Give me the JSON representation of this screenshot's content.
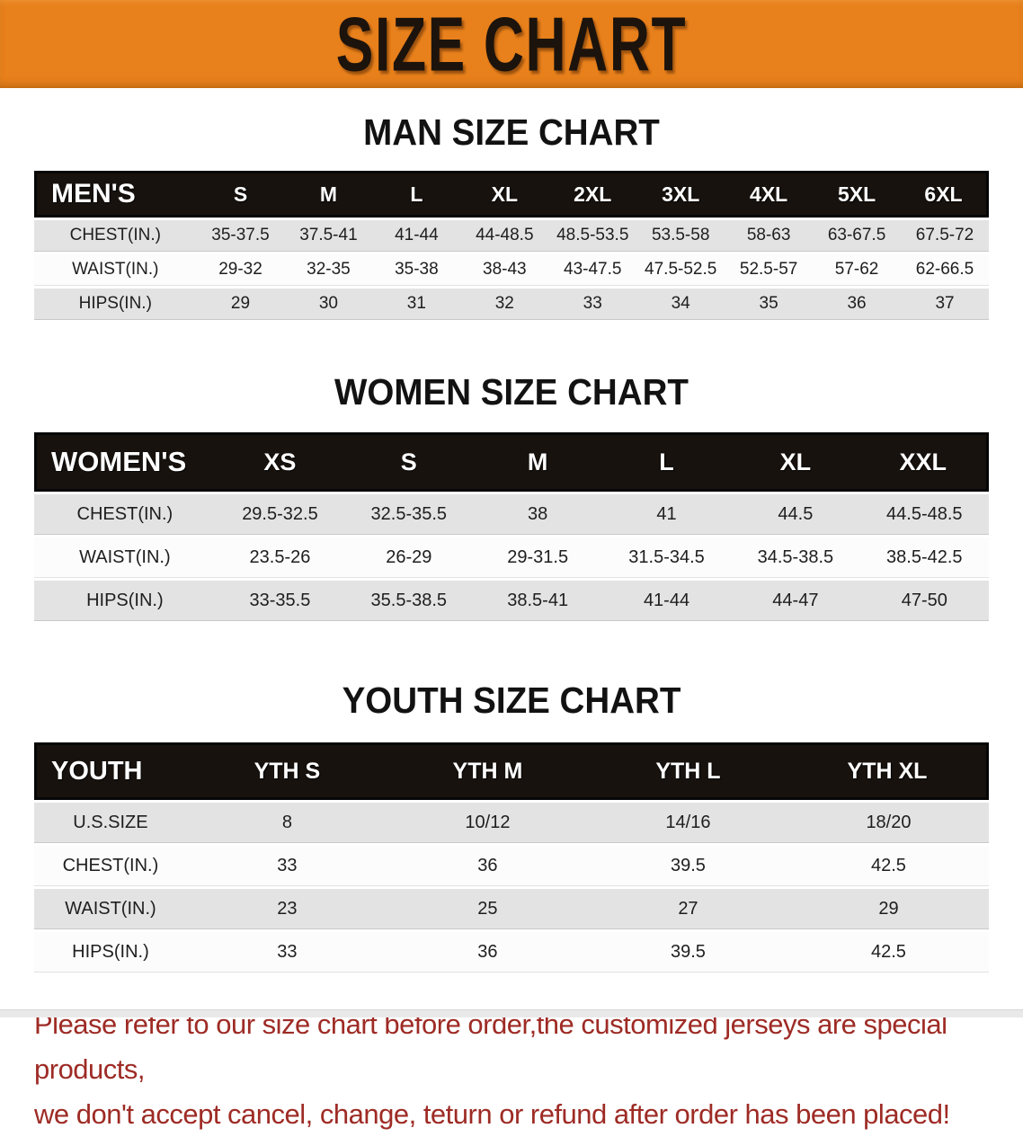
{
  "banner": {
    "title": "SIZE CHART",
    "bg_color": "#E8801B",
    "text_color": "#1C130C"
  },
  "sections": [
    {
      "key": "mens",
      "title": "MAN SIZE CHART",
      "header_label": "MEN'S",
      "columns": [
        "S",
        "M",
        "L",
        "XL",
        "2XL",
        "3XL",
        "4XL",
        "5XL",
        "6XL"
      ],
      "rows": [
        {
          "label": "CHEST(IN.)",
          "values": [
            "35-37.5",
            "37.5-41",
            "41-44",
            "44-48.5",
            "48.5-53.5",
            "53.5-58",
            "58-63",
            "63-67.5",
            "67.5-72"
          ]
        },
        {
          "label": "WAIST(IN.)",
          "values": [
            "29-32",
            "32-35",
            "35-38",
            "38-43",
            "43-47.5",
            "47.5-52.5",
            "52.5-57",
            "57-62",
            "62-66.5"
          ]
        },
        {
          "label": "HIPS(IN.)",
          "values": [
            "29",
            "30",
            "31",
            "32",
            "33",
            "34",
            "35",
            "36",
            "37"
          ]
        }
      ]
    },
    {
      "key": "womens",
      "title": "WOMEN SIZE CHART",
      "header_label": "WOMEN'S",
      "columns": [
        "XS",
        "S",
        "M",
        "L",
        "XL",
        "XXL"
      ],
      "rows": [
        {
          "label": "CHEST(IN.)",
          "values": [
            "29.5-32.5",
            "32.5-35.5",
            "38",
            "41",
            "44.5",
            "44.5-48.5"
          ]
        },
        {
          "label": "WAIST(IN.)",
          "values": [
            "23.5-26",
            "26-29",
            "29-31.5",
            "31.5-34.5",
            "34.5-38.5",
            "38.5-42.5"
          ]
        },
        {
          "label": "HIPS(IN.)",
          "values": [
            "33-35.5",
            "35.5-38.5",
            "38.5-41",
            "41-44",
            "44-47",
            "47-50"
          ]
        }
      ]
    },
    {
      "key": "youth",
      "title": "YOUTH SIZE CHART",
      "header_label": "YOUTH",
      "columns": [
        "YTH S",
        "YTH M",
        "YTH L",
        "YTH XL"
      ],
      "rows": [
        {
          "label": "U.S.SIZE",
          "values": [
            "8",
            "10/12",
            "14/16",
            "18/20"
          ]
        },
        {
          "label": "CHEST(IN.)",
          "values": [
            "33",
            "36",
            "39.5",
            "42.5"
          ]
        },
        {
          "label": "WAIST(IN.)",
          "values": [
            "23",
            "25",
            "27",
            "29"
          ]
        },
        {
          "label": "HIPS(IN.)",
          "values": [
            "33",
            "36",
            "39.5",
            "42.5"
          ]
        }
      ]
    }
  ],
  "disclaimer": {
    "lines": [
      "Please refer to our size chart before order,the customized jerseys are special products,",
      "we don't accept cancel, change, teturn or refund after order has been placed!"
    ],
    "color": "#9E2B25"
  },
  "colors": {
    "banner_orange": "#E8801B",
    "table_header_black": "#17120E",
    "row_gray": "#E3E3E3",
    "row_white": "#FCFCFC",
    "disclaimer_red": "#9E2B25"
  }
}
